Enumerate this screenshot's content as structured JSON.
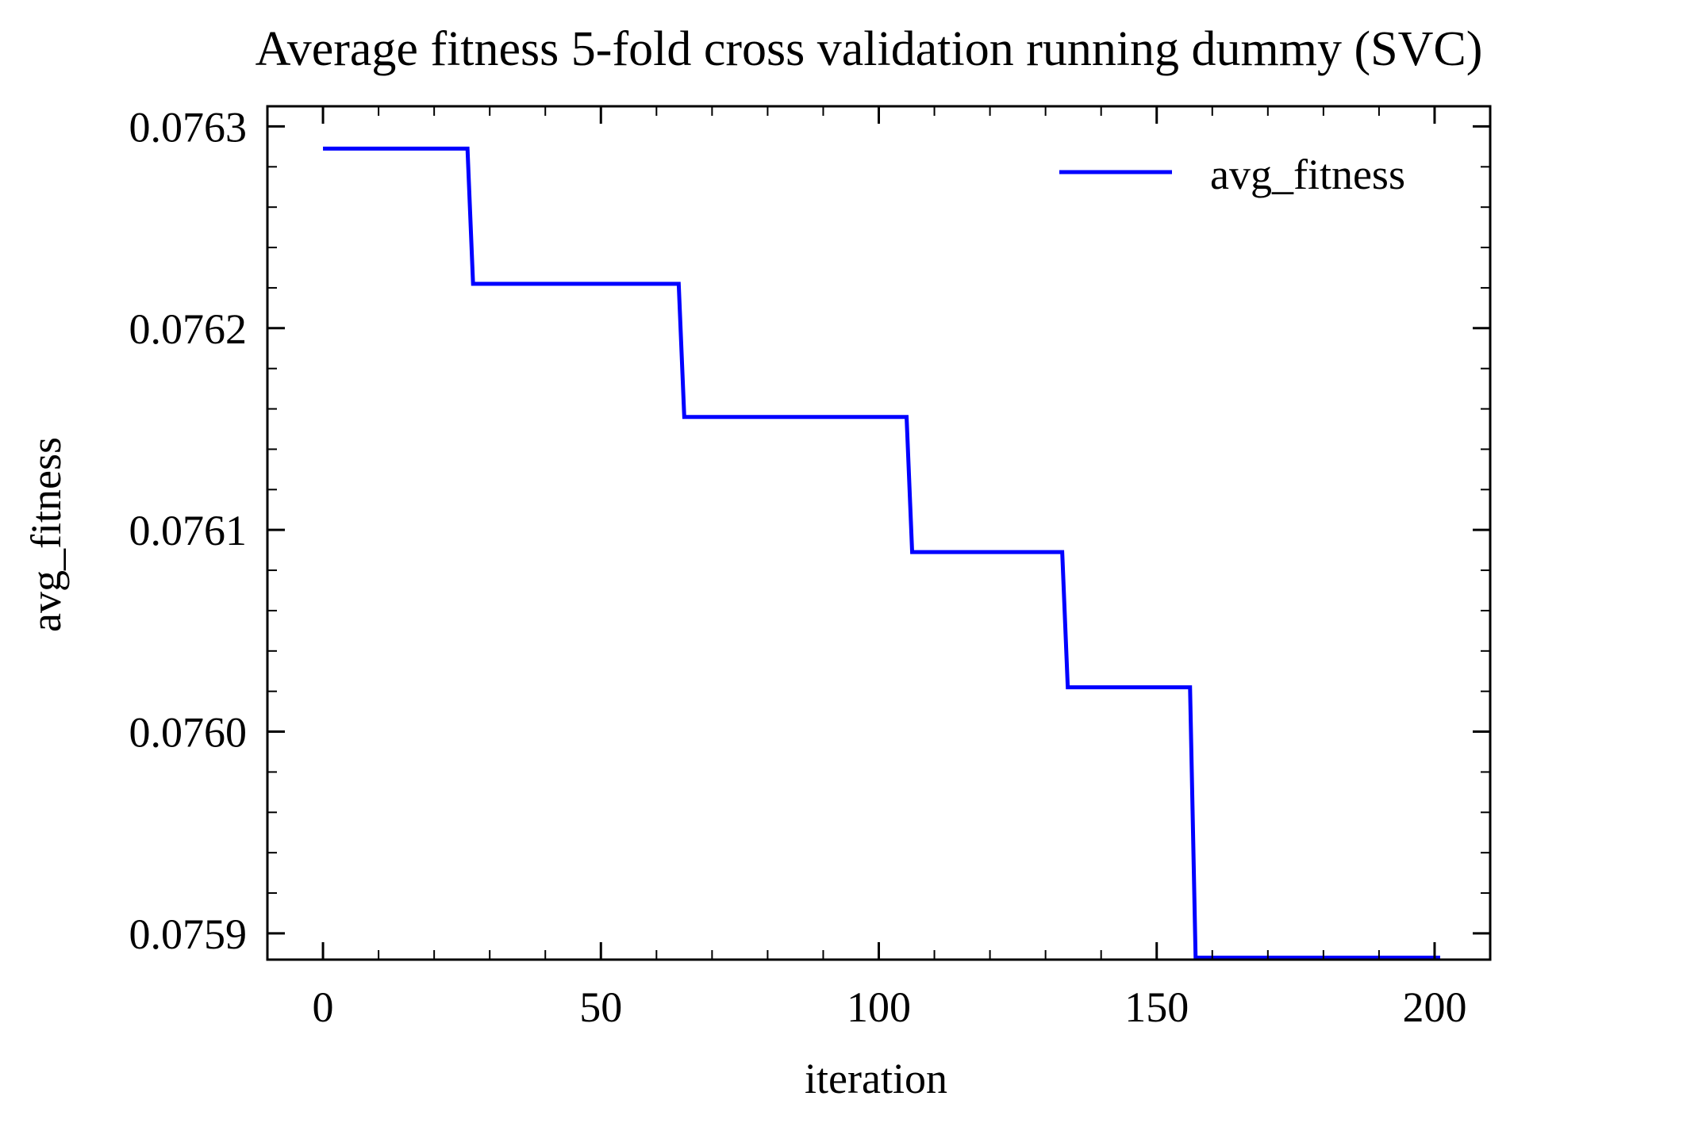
{
  "chart_data": {
    "type": "line",
    "title": "Average fitness 5-fold cross validation running dummy (SVC)",
    "xlabel": "iteration",
    "ylabel": "avg_fitness",
    "xlim": [
      -10,
      210
    ],
    "ylim": [
      0.075887,
      0.07631
    ],
    "xticks": [
      0,
      50,
      100,
      150,
      200
    ],
    "xtick_labels": [
      "0",
      "50",
      "100",
      "150",
      "200"
    ],
    "yticks": [
      0.0759,
      0.076,
      0.0761,
      0.0762,
      0.0763
    ],
    "ytick_labels": [
      "0.0759",
      "0.0760",
      "0.0761",
      "0.0762",
      "0.0763"
    ],
    "grid": false,
    "legend_position": "top-right",
    "series": [
      {
        "name": "avg_fitness",
        "color": "#0000ff",
        "x": [
          0,
          26,
          27,
          64,
          65,
          105,
          106,
          133,
          134,
          156,
          157,
          201
        ],
        "y": [
          0.076289,
          0.076289,
          0.076222,
          0.076222,
          0.076156,
          0.076156,
          0.076089,
          0.076089,
          0.076022,
          0.076022,
          0.075888,
          0.075888
        ]
      }
    ]
  }
}
